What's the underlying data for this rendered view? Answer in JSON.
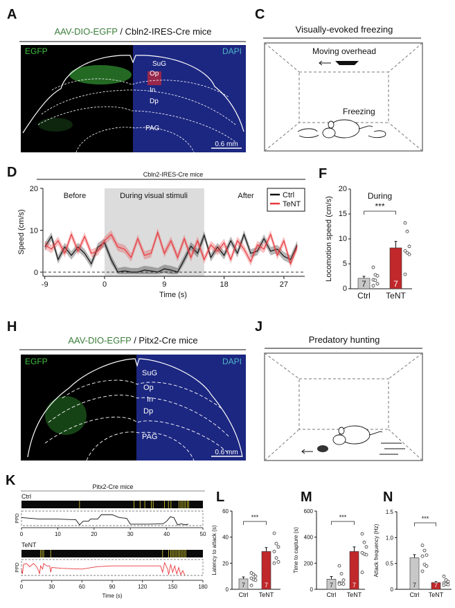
{
  "panel_a": {
    "label": "A",
    "title_green": "AAV-DIO-EGFP",
    "title_rest": " / Cbln2-IRES-Cre  mice",
    "left_channel": "EGFP",
    "right_channel": "DAPI",
    "regions": [
      "SuG",
      "Op",
      "In",
      "Dp",
      "PAG"
    ],
    "scale_bar": "0.6 mm",
    "colors": {
      "egfp": "#3fbf3f",
      "dapi": "#2a36b0",
      "title_green": "#3a7d3a",
      "dapi_label": "#4fb6c8"
    }
  },
  "panel_c": {
    "label": "C",
    "title": "Visually-evoked freezing",
    "stimulus": "Moving overhead",
    "behavior": "Freezing"
  },
  "panel_h": {
    "label": "H",
    "title_green": "AAV-DIO-EGFP",
    "title_rest": " / Pitx2-Cre  mice",
    "left_channel": "EGFP",
    "right_channel": "DAPI",
    "regions": [
      "SuG",
      "Op",
      "In",
      "Dp",
      "PAG"
    ],
    "scale_bar": "0.6 mm"
  },
  "panel_j": {
    "label": "J",
    "title": "Predatory hunting"
  },
  "chart_data": [
    {
      "panel": "D",
      "type": "line",
      "title": "Cbln2-IRES-Cre mice",
      "xlabel": "Time (s)",
      "ylabel": "Speed (cm/s)",
      "xlim": [
        -9,
        30
      ],
      "ylim": [
        0,
        20
      ],
      "xticks": [
        -9,
        0,
        9,
        18,
        27
      ],
      "yticks": [
        0,
        10,
        20
      ],
      "shaded_interval": [
        0,
        15
      ],
      "annotations": [
        "Before",
        "During visual stimuli",
        "After"
      ],
      "legend": "top-right",
      "x": [
        -9,
        -8,
        -7,
        -6,
        -5,
        -4,
        -3,
        -2,
        -1,
        0,
        1,
        2,
        3,
        4,
        5,
        6,
        7,
        8,
        9,
        10,
        11,
        12,
        13,
        14,
        15,
        16,
        17,
        18,
        19,
        20,
        21,
        22,
        23,
        24,
        25,
        26,
        27,
        28,
        29
      ],
      "series": [
        {
          "name": "Ctrl",
          "color": "#111111",
          "values": [
            6,
            8.5,
            3,
            6,
            4,
            6,
            4.5,
            2,
            6,
            7,
            3,
            0,
            0.3,
            0,
            0,
            0.5,
            0.3,
            0,
            0.8,
            0.5,
            0,
            3,
            6.2,
            4.5,
            8.8,
            3.5,
            6,
            4,
            7.5,
            4.5,
            9,
            4.5,
            5,
            8,
            5,
            5.5,
            3.8,
            3,
            6.5
          ]
        },
        {
          "name": "TeNT",
          "color": "#e8383d",
          "values": [
            6.5,
            5.5,
            7.5,
            4.5,
            9,
            5,
            8.5,
            4.5,
            5,
            7.5,
            9,
            6,
            5.5,
            3.5,
            8,
            4,
            4.5,
            9.5,
            4.5,
            7.5,
            3.5,
            8,
            3.5,
            7.5,
            3,
            6.5,
            5,
            7,
            3,
            7.5,
            5.5,
            2.5,
            6.5,
            5.5,
            9,
            4,
            7.5,
            2,
            6
          ]
        }
      ]
    },
    {
      "panel": "F",
      "type": "bar",
      "title": "During",
      "ylabel": "Locomotion speed (cm/s)",
      "categories": [
        "Ctrl",
        "TeNT"
      ],
      "values": [
        2.1,
        8.2
      ],
      "errors": [
        0.4,
        1.3
      ],
      "n": [
        "7",
        "7"
      ],
      "points": [
        [
          4.3,
          2.8,
          2.6,
          1.8,
          1.7,
          1.0,
          0.6
        ],
        [
          13.2,
          11.5,
          8.5,
          7.6,
          7.2,
          6.9,
          2.9
        ]
      ],
      "ylim": [
        0,
        20
      ],
      "yticks": [
        0,
        5,
        10,
        15,
        20
      ],
      "significance": "***",
      "colors": [
        "#c8c8c8",
        "#c0282b"
      ]
    },
    {
      "panel": "K",
      "type": "line",
      "title": "Pitx2-Cre mice",
      "xlabel": "Time (s)",
      "ylabel": "PPD",
      "rows": [
        {
          "name": "Ctrl",
          "xlim": [
            0,
            50
          ],
          "xticks": [
            0,
            10,
            20,
            30,
            40,
            50
          ],
          "color": "#111111",
          "attack_events": [
            16,
            31,
            32.7,
            34,
            35.8,
            36.3,
            39.4,
            40.5,
            41.2,
            43.4,
            43.9,
            44.3,
            44.8,
            45.2,
            45.7,
            46.1
          ],
          "ppd": [
            [
              0,
              0.55
            ],
            [
              5,
              0.45
            ],
            [
              10,
              0.45
            ],
            [
              15,
              0.4
            ],
            [
              16,
              0.05
            ],
            [
              17,
              0.3
            ],
            [
              18.5,
              0.3
            ],
            [
              19,
              0.45
            ],
            [
              21,
              0.45
            ],
            [
              22,
              0.75
            ],
            [
              25,
              0.75
            ],
            [
              27,
              0.55
            ],
            [
              29,
              0.5
            ],
            [
              30,
              0.1
            ],
            [
              35,
              0.1
            ],
            [
              39,
              0.12
            ],
            [
              40,
              0.3
            ],
            [
              41,
              0.6
            ],
            [
              42,
              0.55
            ],
            [
              43,
              0.05
            ],
            [
              44,
              0.12
            ],
            [
              45,
              0.06
            ],
            [
              46,
              0.1
            ]
          ]
        },
        {
          "name": "TeNT",
          "xlim": [
            0,
            180
          ],
          "xticks": [
            0,
            30,
            60,
            90,
            120,
            150,
            180
          ],
          "color": "#e8383d",
          "attack_events": [
            19,
            20.5,
            22,
            29,
            140,
            146,
            148,
            149.5,
            151,
            152.5,
            154,
            155.5,
            157,
            158.5,
            160,
            161.5,
            163
          ],
          "ppd": [
            [
              0,
              0.4
            ],
            [
              1,
              0.1
            ],
            [
              2,
              0.7
            ],
            [
              5,
              0.75
            ],
            [
              8,
              0.55
            ],
            [
              12,
              0.75
            ],
            [
              15,
              0.55
            ],
            [
              17,
              0.3
            ],
            [
              18,
              0.1
            ],
            [
              19,
              0.6
            ],
            [
              21,
              0.4
            ],
            [
              22,
              0.75
            ],
            [
              25,
              0.6
            ],
            [
              28,
              0.6
            ],
            [
              29,
              0.2
            ],
            [
              30,
              0.5
            ],
            [
              40,
              0.45
            ],
            [
              60,
              0.4
            ],
            [
              75,
              0.55
            ],
            [
              90,
              0.6
            ],
            [
              120,
              0.6
            ],
            [
              138,
              0.6
            ],
            [
              140,
              0.2
            ],
            [
              142,
              0.8
            ],
            [
              145,
              0.4
            ],
            [
              146,
              0.05
            ],
            [
              148,
              0.7
            ],
            [
              150,
              0.2
            ],
            [
              152,
              0.6
            ],
            [
              154,
              0.1
            ],
            [
              156,
              0.5
            ],
            [
              158,
              0.05
            ],
            [
              160,
              0.3
            ],
            [
              162,
              0.02
            ]
          ]
        }
      ],
      "event_color": "#c8c030"
    },
    {
      "panel": "L",
      "type": "bar",
      "ylabel": "Latency to attack (s)",
      "categories": [
        "Ctrl",
        "TeNT"
      ],
      "values": [
        8,
        29
      ],
      "errors": [
        1.5,
        3
      ],
      "n": [
        "7",
        "7"
      ],
      "points": [
        [
          12.5,
          11.5,
          10,
          8.5,
          7.5,
          7,
          3
        ],
        [
          43,
          35,
          32.5,
          29,
          24,
          21,
          20
        ]
      ],
      "ylim": [
        0,
        60
      ],
      "yticks": [
        0,
        20,
        40,
        60
      ],
      "significance": "***",
      "colors": [
        "#c8c8c8",
        "#c0282b"
      ]
    },
    {
      "panel": "M",
      "type": "bar",
      "ylabel": "Time to capture (s)",
      "categories": [
        "Ctrl",
        "TeNT"
      ],
      "values": [
        78,
        290
      ],
      "errors": [
        20,
        35
      ],
      "n": [
        "7",
        "7"
      ],
      "points": [
        [
          180,
          120,
          70,
          50,
          45,
          40,
          40
        ],
        [
          425,
          360,
          325,
          280,
          270,
          265,
          130
        ]
      ],
      "ylim": [
        0,
        600
      ],
      "yticks": [
        0,
        200,
        400,
        600
      ],
      "significance": "***",
      "colors": [
        "#c8c8c8",
        "#c0282b"
      ]
    },
    {
      "panel": "N",
      "type": "bar",
      "ylabel": "Attack frequency (Hz)",
      "categories": [
        "Ctrl",
        "TeNT"
      ],
      "values": [
        0.61,
        0.13
      ],
      "errors": [
        0.06,
        0.02
      ],
      "n": [
        "7",
        "7"
      ],
      "points": [
        [
          0.85,
          0.75,
          0.66,
          0.64,
          0.48,
          0.45,
          0.35
        ],
        [
          0.25,
          0.18,
          0.15,
          0.12,
          0.1,
          0.09,
          0.08
        ]
      ],
      "ylim": [
        0,
        1.5
      ],
      "yticks": [
        0,
        0.5,
        1.0,
        1.5
      ],
      "ytick_labels": [
        "0",
        "0.5",
        "1.0",
        "1.5"
      ],
      "significance": "***",
      "colors": [
        "#c8c8c8",
        "#c0282b"
      ]
    }
  ]
}
